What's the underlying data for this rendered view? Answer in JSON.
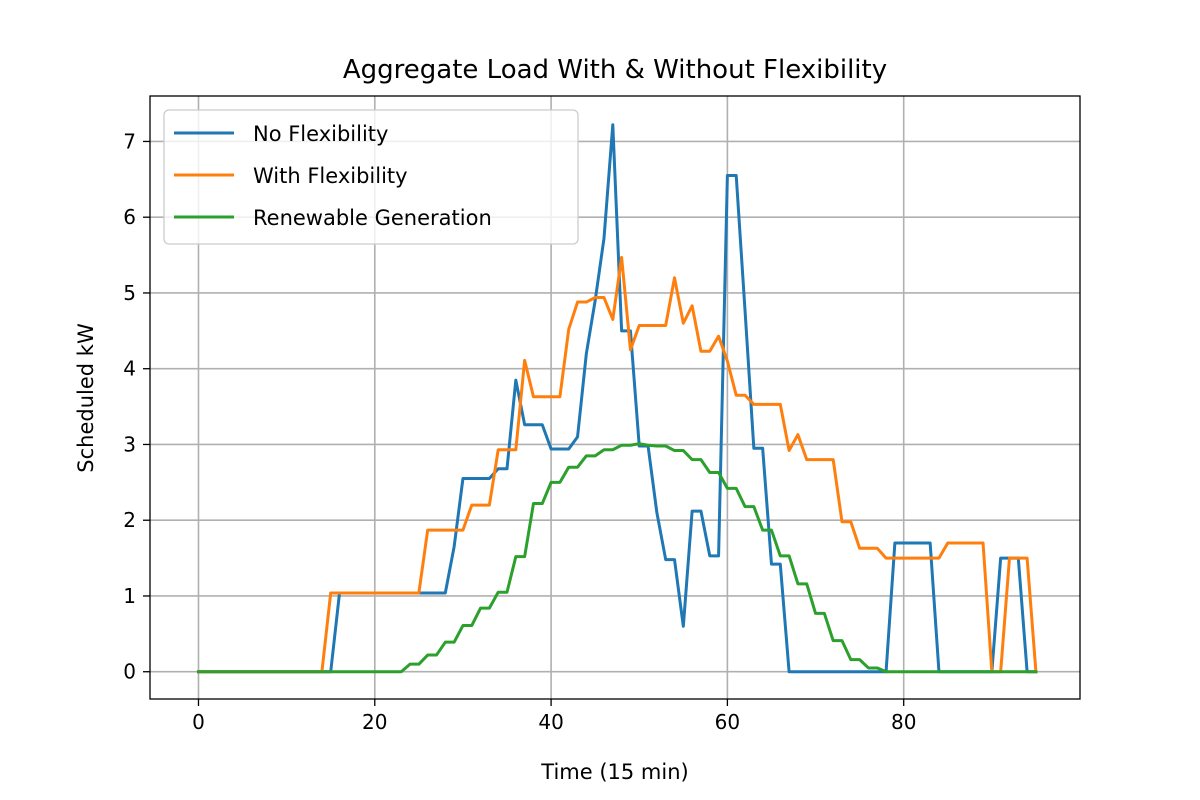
{
  "chart_data": {
    "type": "line",
    "title": "Aggregate Load With & Without Flexibility",
    "xlabel": "Time (15 min)",
    "ylabel": "Scheduled kW",
    "xlim": [
      -5.5,
      100
    ],
    "ylim": [
      -0.36,
      7.6
    ],
    "xticks": [
      0,
      20,
      40,
      60,
      80
    ],
    "yticks": [
      0,
      1,
      2,
      3,
      4,
      5,
      6,
      7
    ],
    "grid": true,
    "legend_position": "upper-left",
    "x": [
      0,
      1,
      2,
      3,
      4,
      5,
      6,
      7,
      8,
      9,
      10,
      11,
      12,
      13,
      14,
      15,
      16,
      17,
      18,
      19,
      20,
      21,
      22,
      23,
      24,
      25,
      26,
      27,
      28,
      29,
      30,
      31,
      32,
      33,
      34,
      35,
      36,
      37,
      38,
      39,
      40,
      41,
      42,
      43,
      44,
      45,
      46,
      47,
      48,
      49,
      50,
      51,
      52,
      53,
      54,
      55,
      56,
      57,
      58,
      59,
      60,
      61,
      62,
      63,
      64,
      65,
      66,
      67,
      68,
      69,
      70,
      71,
      72,
      73,
      74,
      75,
      76,
      77,
      78,
      79,
      80,
      81,
      82,
      83,
      84,
      85,
      86,
      87,
      88,
      89,
      90,
      91,
      92,
      93,
      94,
      95
    ],
    "series": [
      {
        "name": "No Flexibility",
        "color": "#1f77b4",
        "values": [
          0,
          0,
          0,
          0,
          0,
          0,
          0,
          0,
          0,
          0,
          0,
          0,
          0,
          0,
          0,
          0,
          1.04,
          1.04,
          1.04,
          1.04,
          1.04,
          1.04,
          1.04,
          1.04,
          1.04,
          1.04,
          1.04,
          1.04,
          1.04,
          1.65,
          2.55,
          2.55,
          2.55,
          2.55,
          2.68,
          2.68,
          3.85,
          3.26,
          3.26,
          3.26,
          2.94,
          2.94,
          2.94,
          3.1,
          4.2,
          4.9,
          5.72,
          7.22,
          4.5,
          4.5,
          2.98,
          2.98,
          2.1,
          1.48,
          1.48,
          0.6,
          2.12,
          2.12,
          1.53,
          1.53,
          6.55,
          6.55,
          4.77,
          2.95,
          2.95,
          1.42,
          1.42,
          0,
          0,
          0,
          0,
          0,
          0,
          0,
          0,
          0,
          0,
          0,
          0,
          1.7,
          1.7,
          1.7,
          1.7,
          1.7,
          0,
          0,
          0,
          0,
          0,
          0,
          0,
          1.5,
          1.5,
          1.5,
          0,
          0
        ]
      },
      {
        "name": "With Flexibility",
        "color": "#ff7f0e",
        "values": [
          0,
          0,
          0,
          0,
          0,
          0,
          0,
          0,
          0,
          0,
          0,
          0,
          0,
          0,
          0,
          1.04,
          1.04,
          1.04,
          1.04,
          1.04,
          1.04,
          1.04,
          1.04,
          1.04,
          1.04,
          1.04,
          1.87,
          1.87,
          1.87,
          1.87,
          1.87,
          2.2,
          2.2,
          2.2,
          2.93,
          2.93,
          2.93,
          4.11,
          3.63,
          3.63,
          3.63,
          3.63,
          4.52,
          4.88,
          4.88,
          4.94,
          4.94,
          4.65,
          5.47,
          4.25,
          4.57,
          4.57,
          4.57,
          4.57,
          5.2,
          4.6,
          4.83,
          4.23,
          4.23,
          4.43,
          4.1,
          3.65,
          3.65,
          3.53,
          3.53,
          3.53,
          3.53,
          2.92,
          3.13,
          2.8,
          2.8,
          2.8,
          2.8,
          1.98,
          1.98,
          1.63,
          1.63,
          1.63,
          1.5,
          1.5,
          1.5,
          1.5,
          1.5,
          1.5,
          1.5,
          1.7,
          1.7,
          1.7,
          1.7,
          1.7,
          0,
          0,
          1.5,
          1.5,
          1.5,
          0
        ]
      },
      {
        "name": "Renewable Generation",
        "color": "#2ca02c",
        "values": [
          0,
          0,
          0,
          0,
          0,
          0,
          0,
          0,
          0,
          0,
          0,
          0,
          0,
          0,
          0,
          0,
          0,
          0,
          0,
          0,
          0,
          0,
          0,
          0,
          0.1,
          0.1,
          0.22,
          0.22,
          0.39,
          0.39,
          0.61,
          0.61,
          0.84,
          0.84,
          1.05,
          1.05,
          1.52,
          1.52,
          2.22,
          2.22,
          2.5,
          2.5,
          2.7,
          2.7,
          2.85,
          2.85,
          2.93,
          2.93,
          2.99,
          2.99,
          3.01,
          2.99,
          2.98,
          2.98,
          2.92,
          2.92,
          2.8,
          2.8,
          2.63,
          2.63,
          2.42,
          2.42,
          2.18,
          2.18,
          1.87,
          1.87,
          1.53,
          1.53,
          1.16,
          1.16,
          0.77,
          0.77,
          0.41,
          0.41,
          0.16,
          0.16,
          0.05,
          0.05,
          0,
          0,
          0,
          0,
          0,
          0,
          0,
          0,
          0,
          0,
          0,
          0,
          0,
          0,
          0,
          0,
          0,
          0
        ]
      }
    ]
  }
}
